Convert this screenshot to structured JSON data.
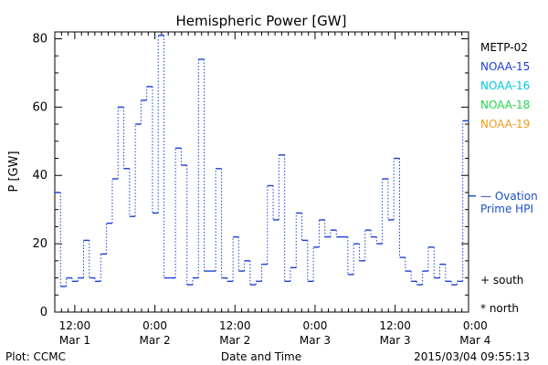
{
  "chart_data": {
    "type": "line",
    "title": "Hemispheric Power [GW]",
    "ylabel": "P [GW]",
    "xlabel": "Date and Time",
    "ylim": [
      0,
      82
    ],
    "yticks": [
      0,
      20,
      40,
      60,
      80
    ],
    "xlim_hours": [
      -3,
      59
    ],
    "xticks": [
      {
        "hour": 0,
        "time": "12:00",
        "date": "Mar 1"
      },
      {
        "hour": 12,
        "time": "0:00",
        "date": "Mar 2"
      },
      {
        "hour": 24,
        "time": "12:00",
        "date": "Mar 2"
      },
      {
        "hour": 36,
        "time": "0:00",
        "date": "Mar 3"
      },
      {
        "hour": 48,
        "time": "12:00",
        "date": "Mar 3"
      },
      {
        "hour": 60,
        "time": "0:00",
        "date": "Mar 4"
      }
    ],
    "series": [
      {
        "name": "NOAA-15",
        "color": "#1a3fd6",
        "style": "step (dotted verticals)",
        "values": [
          35,
          7.5,
          10,
          9,
          10,
          21,
          10,
          9,
          17,
          26,
          39,
          60,
          42,
          28,
          55,
          62,
          66,
          29,
          81,
          10,
          10,
          48,
          43,
          8,
          10,
          74,
          12,
          12,
          42,
          10,
          9,
          22,
          12,
          15,
          8,
          9,
          14,
          37,
          27,
          46,
          9,
          13,
          29,
          21,
          9,
          19,
          27,
          22,
          24,
          22,
          22,
          11,
          20,
          15,
          24,
          22,
          20,
          39,
          27,
          45,
          16,
          12,
          9,
          8,
          12,
          19,
          10,
          14,
          9,
          8,
          9,
          56
        ]
      }
    ],
    "legend": [
      "METP-02",
      "NOAA-15",
      "NOAA-16",
      "NOAA-18",
      "NOAA-19"
    ],
    "legend_colors": [
      "#000000",
      "#1a3fd6",
      "#00c8e6",
      "#22d84a",
      "#f59b1a"
    ],
    "ovation_value": 34,
    "ovation_label_1": "— Ovation",
    "ovation_label_2": "Prime HPI",
    "ovation_color": "#1a50c8",
    "marker_south": "+ south",
    "marker_north": "* north"
  },
  "footer": {
    "plot_credit": "Plot: CCMC",
    "timestamp": "2015/03/04 09:55:13"
  }
}
